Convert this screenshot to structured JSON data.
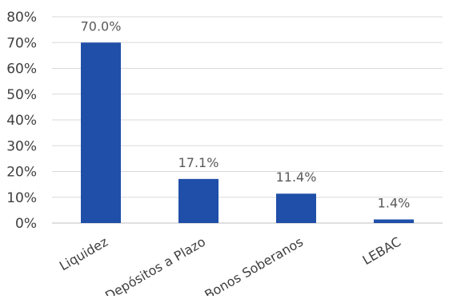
{
  "chart_data": {
    "type": "bar",
    "title": "",
    "xlabel": "",
    "ylabel": "",
    "categories": [
      "Liquidez",
      "Depósitos a Plazo",
      "Bonos Soberanos",
      "LEBAC"
    ],
    "values": [
      70.0,
      17.1,
      11.4,
      1.4
    ],
    "data_labels": [
      "70.0%",
      "17.1%",
      "11.4%",
      "1.4%"
    ],
    "ylim": [
      0,
      80
    ],
    "yticks": [
      0,
      10,
      20,
      30,
      40,
      50,
      60,
      70,
      80
    ],
    "ytick_labels": [
      "0%",
      "10%",
      "20%",
      "30%",
      "40%",
      "50%",
      "60%",
      "70%",
      "80%"
    ],
    "grid": true,
    "legend": "none",
    "bar_color": "#1f4fa8"
  }
}
